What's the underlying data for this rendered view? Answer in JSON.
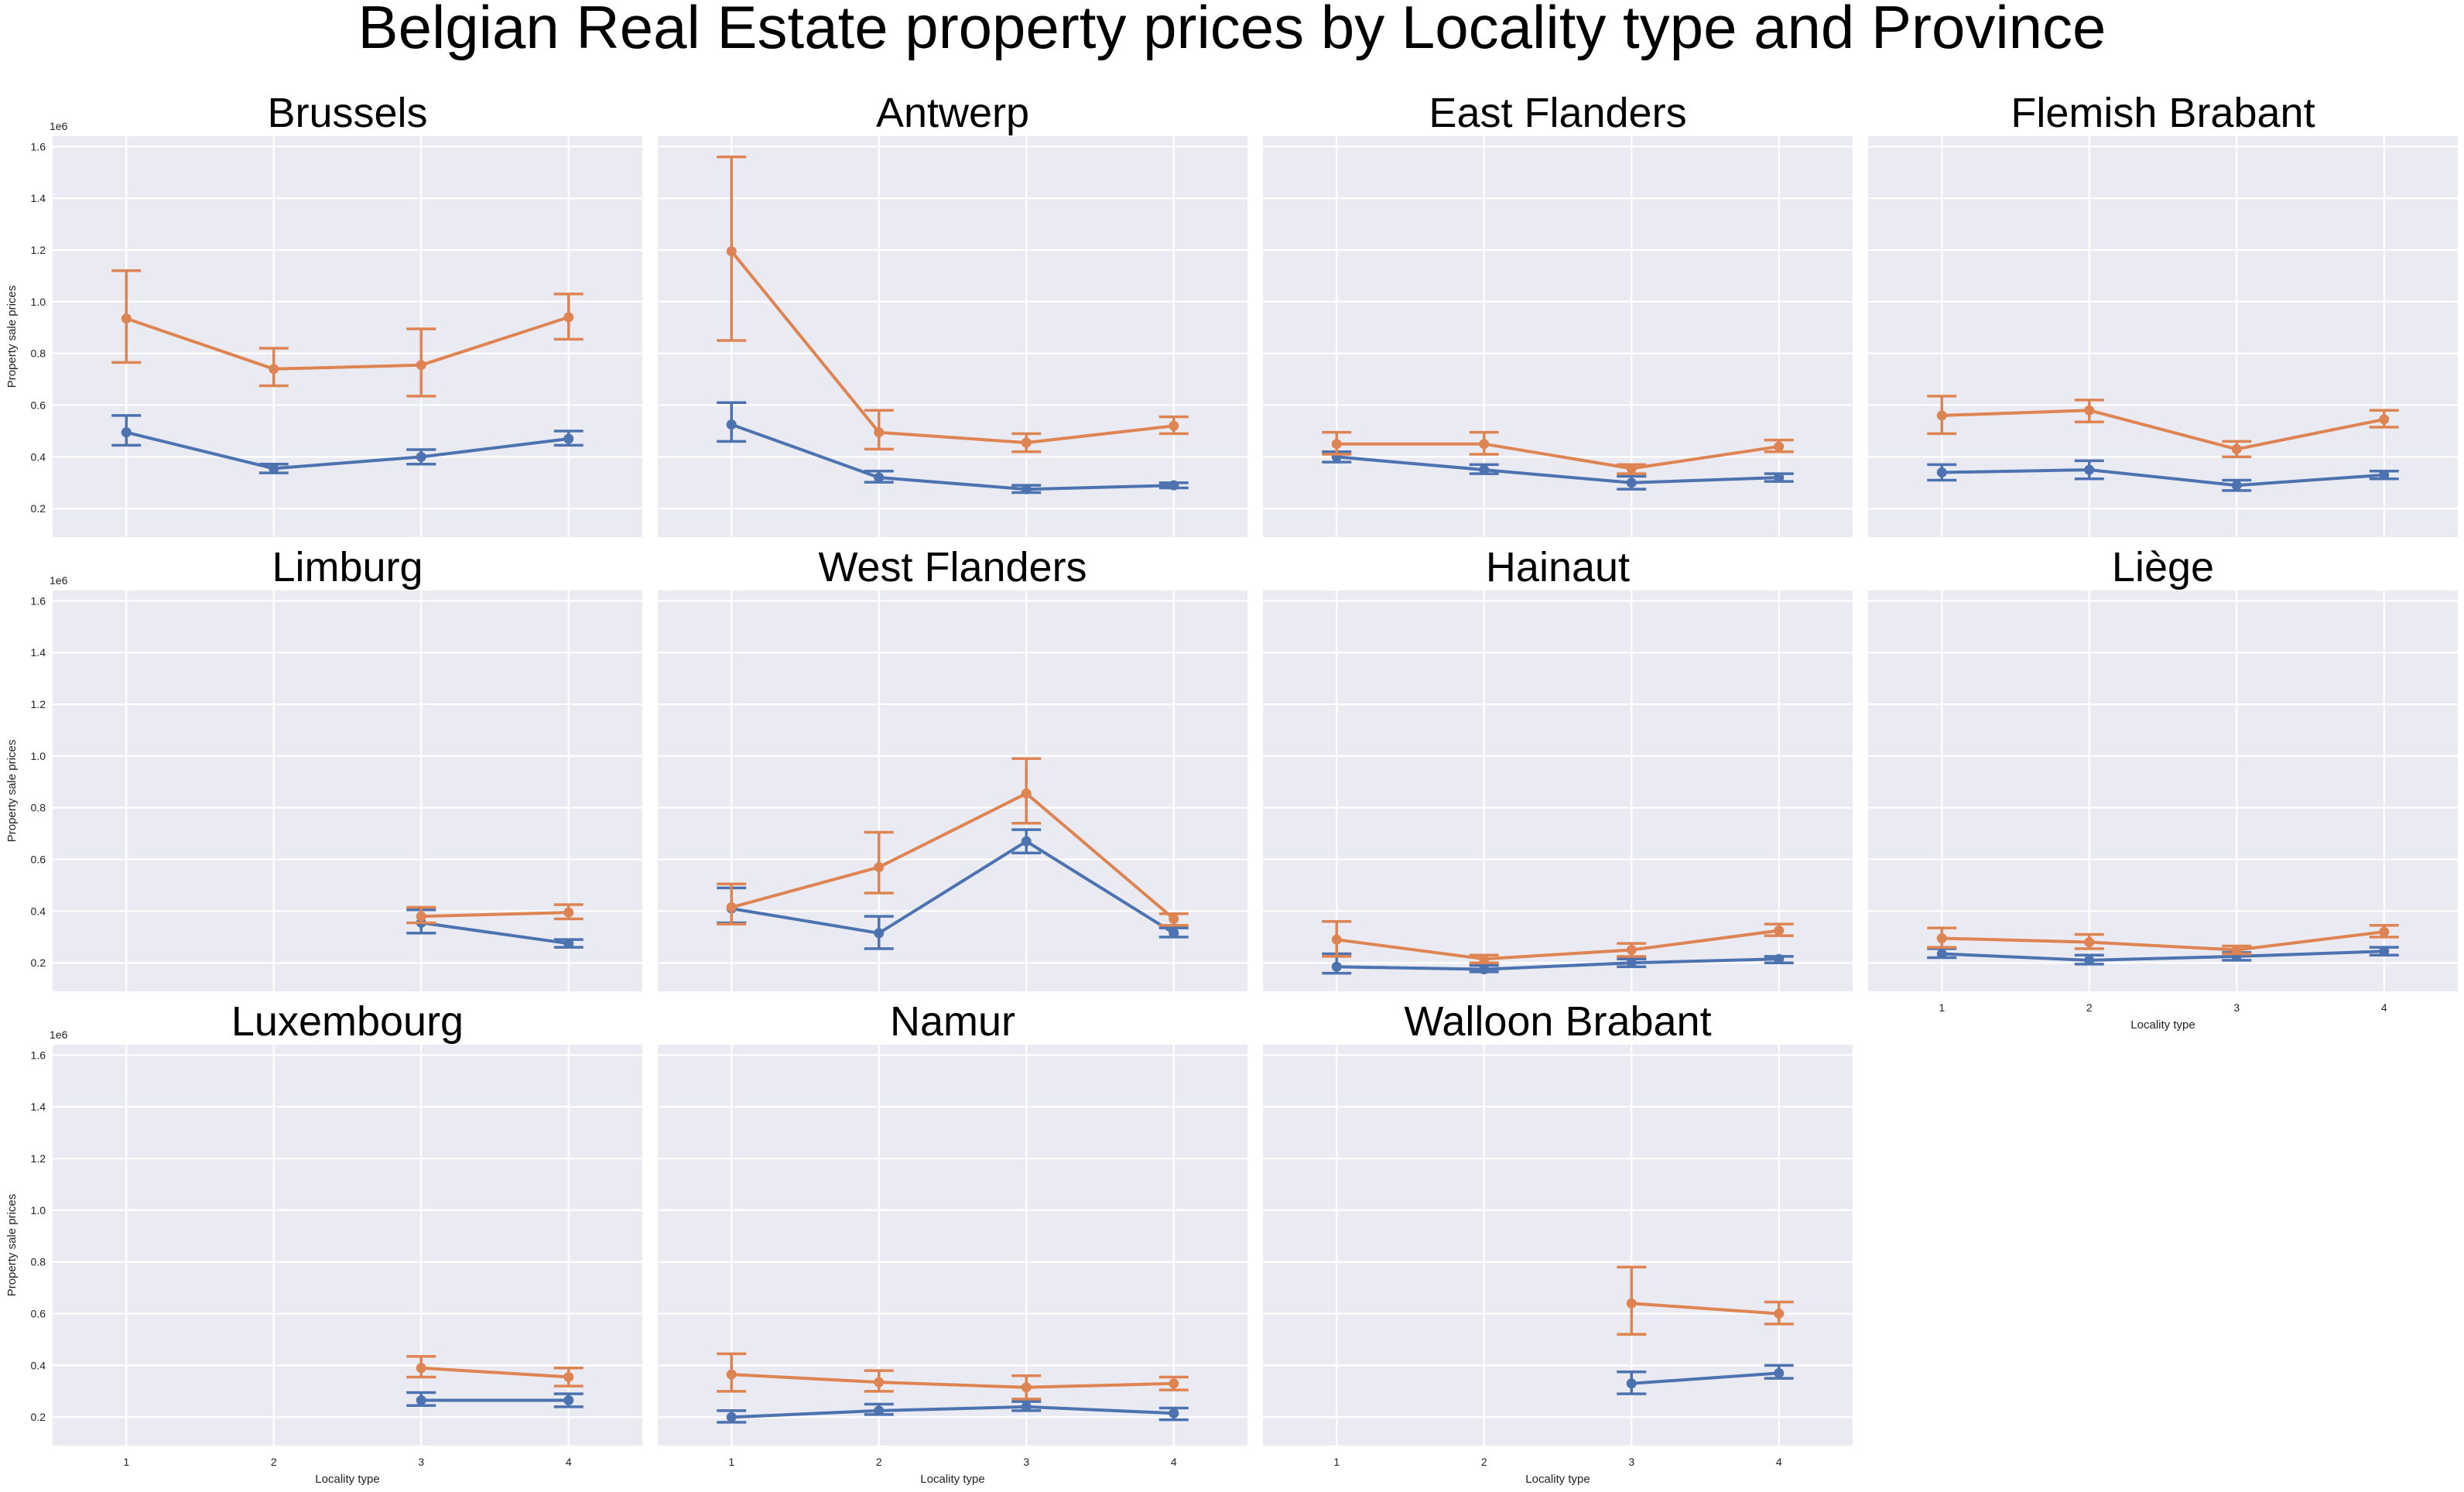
{
  "figure": {
    "title": "Belgian Real Estate property prices by Locality type and Province",
    "ylabel": "Property sale prices",
    "xlabel": "Locality type",
    "offset_label": "1e6"
  },
  "chart_data": {
    "type": "line",
    "title": "Belgian Real Estate property prices by Locality type and Province",
    "xlabel": "Locality type",
    "ylabel": "Property sale prices",
    "ylim": [
      0.09,
      1.64
    ],
    "y_scale_multiplier": "1e6",
    "x_ticks": [
      "1",
      "2",
      "3",
      "4"
    ],
    "y_ticks": [
      0.2,
      0.4,
      0.6,
      0.8,
      1.0,
      1.2,
      1.4,
      1.6
    ],
    "y_tick_labels": [
      "0.2",
      "0.4",
      "0.6",
      "0.8",
      "1.0",
      "1.2",
      "1.4",
      "1.6"
    ],
    "grid": true,
    "series_colors": [
      "#4c72b0",
      "#dd8452"
    ],
    "panels": [
      {
        "name": "Brussels",
        "series": [
          {
            "values": [
              0.495,
              0.355,
              0.4,
              0.47
            ],
            "ci_low": [
              0.445,
              0.338,
              0.372,
              0.445
            ],
            "ci_high": [
              0.56,
              0.372,
              0.428,
              0.5
            ]
          },
          {
            "values": [
              0.935,
              0.74,
              0.755,
              0.94
            ],
            "ci_low": [
              0.765,
              0.675,
              0.635,
              0.855
            ],
            "ci_high": [
              1.12,
              0.82,
              0.895,
              1.03
            ]
          }
        ]
      },
      {
        "name": "Antwerp",
        "series": [
          {
            "values": [
              0.525,
              0.32,
              0.275,
              0.29
            ],
            "ci_low": [
              0.46,
              0.302,
              0.262,
              0.28
            ],
            "ci_high": [
              0.61,
              0.345,
              0.29,
              0.3
            ]
          },
          {
            "values": [
              1.195,
              0.495,
              0.455,
              0.52
            ],
            "ci_low": [
              0.85,
              0.43,
              0.42,
              0.49
            ],
            "ci_high": [
              1.56,
              0.58,
              0.49,
              0.555
            ]
          }
        ]
      },
      {
        "name": "East Flanders",
        "series": [
          {
            "values": [
              0.4,
              0.35,
              0.3,
              0.32
            ],
            "ci_low": [
              0.38,
              0.335,
              0.275,
              0.305
            ],
            "ci_high": [
              0.42,
              0.37,
              0.325,
              0.335
            ]
          },
          {
            "values": [
              0.45,
              0.45,
              0.355,
              0.44
            ],
            "ci_low": [
              0.41,
              0.41,
              0.335,
              0.42
            ],
            "ci_high": [
              0.495,
              0.495,
              0.37,
              0.465
            ]
          }
        ]
      },
      {
        "name": "Flemish Brabant",
        "series": [
          {
            "values": [
              0.34,
              0.35,
              0.29,
              0.33
            ],
            "ci_low": [
              0.31,
              0.315,
              0.27,
              0.315
            ],
            "ci_high": [
              0.37,
              0.385,
              0.31,
              0.345
            ]
          },
          {
            "values": [
              0.56,
              0.58,
              0.43,
              0.545
            ],
            "ci_low": [
              0.49,
              0.535,
              0.4,
              0.515
            ],
            "ci_high": [
              0.635,
              0.62,
              0.46,
              0.58
            ]
          }
        ]
      },
      {
        "name": "Limburg",
        "series": [
          {
            "values": [
              null,
              null,
              0.355,
              0.275
            ],
            "ci_low": [
              null,
              null,
              0.315,
              0.26
            ],
            "ci_high": [
              null,
              null,
              0.405,
              0.29
            ]
          },
          {
            "values": [
              null,
              null,
              0.38,
              0.395
            ],
            "ci_low": [
              null,
              null,
              0.355,
              0.37
            ],
            "ci_high": [
              null,
              null,
              0.415,
              0.425
            ]
          }
        ]
      },
      {
        "name": "West Flanders",
        "series": [
          {
            "values": [
              0.41,
              0.315,
              0.67,
              0.315
            ],
            "ci_low": [
              0.355,
              0.255,
              0.625,
              0.3
            ],
            "ci_high": [
              0.49,
              0.38,
              0.715,
              0.335
            ]
          },
          {
            "values": [
              0.415,
              0.57,
              0.855,
              0.37
            ],
            "ci_low": [
              0.35,
              0.47,
              0.74,
              0.345
            ],
            "ci_high": [
              0.505,
              0.705,
              0.99,
              0.39
            ]
          }
        ]
      },
      {
        "name": "Hainaut",
        "series": [
          {
            "values": [
              0.185,
              0.175,
              0.2,
              0.215
            ],
            "ci_low": [
              0.16,
              0.165,
              0.185,
              0.2
            ],
            "ci_high": [
              0.235,
              0.19,
              0.215,
              0.225
            ]
          },
          {
            "values": [
              0.29,
              0.215,
              0.25,
              0.325
            ],
            "ci_low": [
              0.225,
              0.2,
              0.225,
              0.305
            ],
            "ci_high": [
              0.36,
              0.23,
              0.275,
              0.35
            ]
          }
        ]
      },
      {
        "name": "Liège",
        "series": [
          {
            "values": [
              0.235,
              0.21,
              0.225,
              0.245
            ],
            "ci_low": [
              0.22,
              0.195,
              0.21,
              0.23
            ],
            "ci_high": [
              0.255,
              0.23,
              0.24,
              0.26
            ]
          },
          {
            "values": [
              0.295,
              0.28,
              0.25,
              0.32
            ],
            "ci_low": [
              0.26,
              0.255,
              0.235,
              0.3
            ],
            "ci_high": [
              0.335,
              0.31,
              0.265,
              0.345
            ]
          }
        ]
      },
      {
        "name": "Luxembourg",
        "series": [
          {
            "values": [
              null,
              null,
              0.265,
              0.265
            ],
            "ci_low": [
              null,
              null,
              0.245,
              0.24
            ],
            "ci_high": [
              null,
              null,
              0.295,
              0.29
            ]
          },
          {
            "values": [
              null,
              null,
              0.39,
              0.355
            ],
            "ci_low": [
              null,
              null,
              0.355,
              0.32
            ],
            "ci_high": [
              null,
              null,
              0.435,
              0.39
            ]
          }
        ]
      },
      {
        "name": "Namur",
        "series": [
          {
            "values": [
              0.2,
              0.225,
              0.24,
              0.215
            ],
            "ci_low": [
              0.18,
              0.21,
              0.225,
              0.19
            ],
            "ci_high": [
              0.225,
              0.25,
              0.26,
              0.235
            ]
          },
          {
            "values": [
              0.365,
              0.335,
              0.315,
              0.33
            ],
            "ci_low": [
              0.3,
              0.3,
              0.27,
              0.305
            ],
            "ci_high": [
              0.445,
              0.38,
              0.36,
              0.355
            ]
          }
        ]
      },
      {
        "name": "Walloon Brabant",
        "series": [
          {
            "values": [
              null,
              null,
              0.33,
              0.37
            ],
            "ci_low": [
              null,
              null,
              0.29,
              0.35
            ],
            "ci_high": [
              null,
              null,
              0.375,
              0.4
            ]
          },
          {
            "values": [
              null,
              null,
              0.64,
              0.6
            ],
            "ci_low": [
              null,
              null,
              0.52,
              0.56
            ],
            "ci_high": [
              null,
              null,
              0.78,
              0.645
            ]
          }
        ]
      }
    ]
  }
}
